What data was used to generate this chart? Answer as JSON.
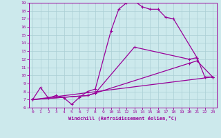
{
  "xlabel": "Windchill (Refroidissement éolien,°C)",
  "xlim": [
    -0.5,
    23.5
  ],
  "ylim": [
    6,
    19
  ],
  "xticks": [
    0,
    1,
    2,
    3,
    4,
    5,
    6,
    7,
    8,
    9,
    10,
    11,
    12,
    13,
    14,
    15,
    16,
    17,
    18,
    19,
    20,
    21,
    22,
    23
  ],
  "yticks": [
    6,
    7,
    8,
    9,
    10,
    11,
    12,
    13,
    14,
    15,
    16,
    17,
    18,
    19
  ],
  "bg_color": "#cce9ec",
  "line_color": "#990099",
  "grid_color": "#aacfd4",
  "curve1_x": [
    0,
    1,
    2,
    3,
    4,
    5,
    6,
    7,
    8,
    10,
    11,
    12,
    13,
    14,
    15,
    16,
    17,
    18,
    21
  ],
  "curve1_y": [
    7.0,
    8.5,
    7.2,
    7.5,
    7.2,
    6.4,
    7.3,
    8.0,
    8.3,
    15.5,
    18.2,
    19.0,
    19.2,
    18.5,
    18.2,
    18.2,
    17.2,
    17.0,
    12.2
  ],
  "curve2_x": [
    0,
    7,
    8,
    13,
    20,
    21,
    22,
    23
  ],
  "curve2_y": [
    7.0,
    7.5,
    7.8,
    13.5,
    12.0,
    12.2,
    9.8,
    9.8
  ],
  "curve3_x": [
    0,
    7,
    8,
    20,
    21,
    23
  ],
  "curve3_y": [
    7.0,
    7.5,
    7.8,
    11.5,
    11.8,
    9.8
  ],
  "curve4_x": [
    0,
    23
  ],
  "curve4_y": [
    7.0,
    9.8
  ]
}
